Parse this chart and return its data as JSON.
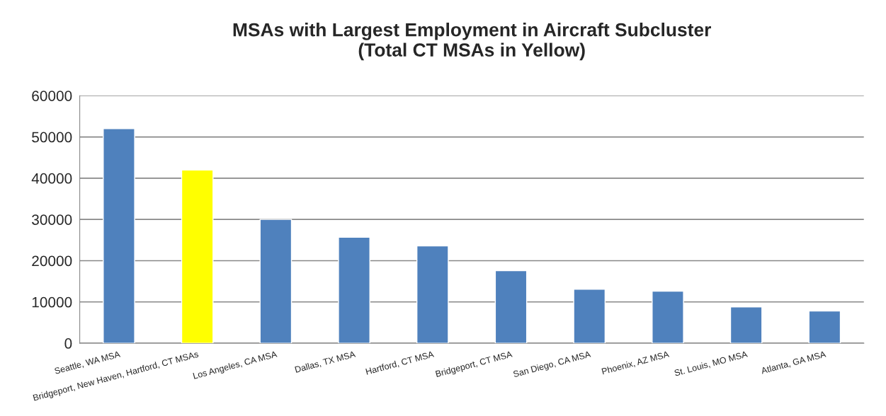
{
  "chart_data": {
    "type": "bar",
    "title": "MSAs with Largest Employment in Aircraft Subcluster\n(Total CT MSAs in Yellow)",
    "categories": [
      "Seattle, WA MSA",
      "Bridgeport, New Haven, Hartford, CT MSAs",
      "Los Angeles, CA MSA",
      "Dallas, TX MSA",
      "Hartford, CT MSA",
      "Bridgeport, CT MSA",
      "San Diego, CA MSA",
      "Phoenix, AZ MSA",
      "St. Louis, MO MSA",
      "Atlanta, GA MSA"
    ],
    "values": [
      52000,
      42000,
      30000,
      25700,
      23600,
      17600,
      13100,
      12600,
      8800,
      7800
    ],
    "colors": [
      "#4f81bd",
      "#ffff00",
      "#4f81bd",
      "#4f81bd",
      "#4f81bd",
      "#4f81bd",
      "#4f81bd",
      "#4f81bd",
      "#4f81bd",
      "#4f81bd"
    ],
    "ylim": [
      0,
      60000
    ],
    "yticks": [
      0,
      10000,
      20000,
      30000,
      40000,
      50000,
      60000
    ],
    "grid": "y",
    "legend": false
  }
}
